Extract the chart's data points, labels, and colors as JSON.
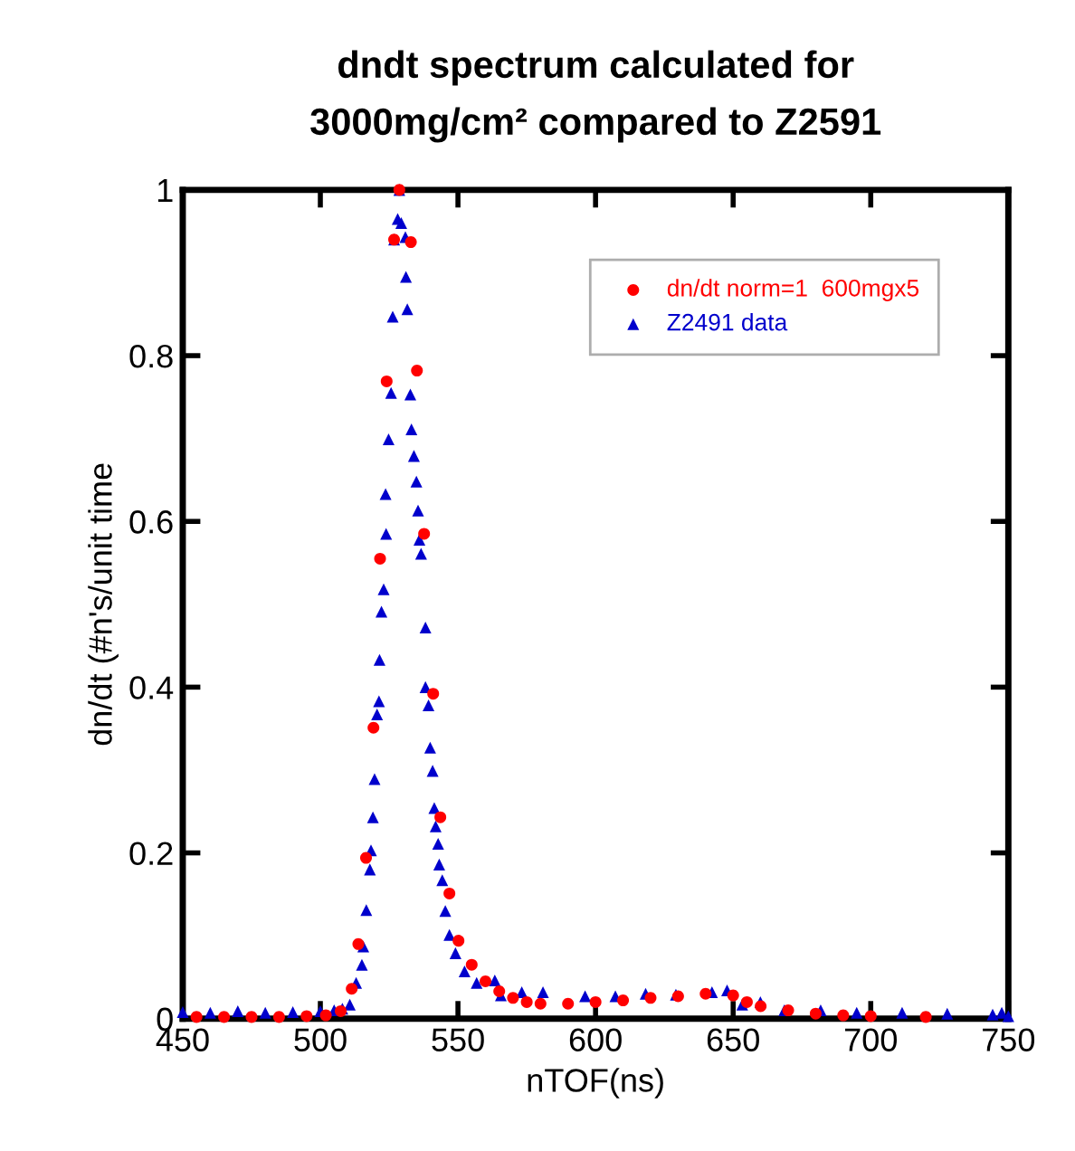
{
  "chart_data": {
    "type": "scatter",
    "title": "dndt spectrum calculated for\n3000mg/cm² compared to Z2591",
    "xlabel": "nTOF(ns)",
    "ylabel": "dn/dt (#n's/unit time",
    "xlim": [
      450,
      750
    ],
    "xticks": [
      450,
      500,
      550,
      600,
      650,
      700,
      750
    ],
    "ylim": [
      0,
      1
    ],
    "yticks": [
      0,
      {
        "value": 0.2,
        "label": "0.2"
      },
      {
        "value": 0.4,
        "label": "0.4"
      },
      {
        "value": 0.6,
        "label": "0.6"
      },
      {
        "value": 0.8,
        "label": "0.8"
      },
      1
    ],
    "grid": false,
    "legend": "top right",
    "series": [
      {
        "name": "dn/dt norm=1  600mgx5",
        "color": "#ff0000",
        "marker": "circle",
        "x": [
          455,
          465,
          475,
          485,
          495,
          502,
          507.4,
          511.4,
          513.8,
          516.6,
          519.3,
          521.7,
          524.1,
          526.8,
          528.7,
          532.9,
          535.1,
          537.7,
          541,
          543.6,
          546.9,
          550.2,
          555,
          560,
          565,
          570,
          575,
          580,
          590,
          600,
          610,
          620,
          630,
          640,
          650,
          655,
          660,
          670,
          680,
          690,
          700,
          720
        ],
        "values": [
          0.002,
          0.002,
          0.002,
          0.002,
          0.003,
          0.004,
          0.009,
          0.036,
          0.09,
          0.194,
          0.351,
          0.555,
          0.769,
          0.94,
          1.0,
          0.937,
          0.782,
          0.585,
          0.392,
          0.243,
          0.151,
          0.094,
          0.065,
          0.045,
          0.033,
          0.025,
          0.02,
          0.018,
          0.018,
          0.02,
          0.022,
          0.025,
          0.027,
          0.03,
          0.028,
          0.02,
          0.015,
          0.01,
          0.006,
          0.004,
          0.003,
          0.002
        ]
      },
      {
        "name": "Z2491 data",
        "color": "#0000cc",
        "marker": "triangle",
        "x": [
          450,
          460,
          470,
          480,
          490,
          500,
          505,
          508,
          510.7,
          513,
          515.1,
          515.6,
          516.7,
          518,
          518.4,
          519.1,
          519.7,
          520.6,
          521.3,
          521.5,
          522.2,
          523,
          523.9,
          523.7,
          524.8,
          525.7,
          526.3,
          526.8,
          528.1,
          528.7,
          529.4,
          530.9,
          531.1,
          531.6,
          532.7,
          533.1,
          534,
          534.9,
          535.5,
          536,
          536.6,
          538.2,
          538.2,
          539.3,
          539.9,
          540.8,
          541.4,
          541.9,
          542.8,
          543.2,
          544.3,
          545.4,
          546.9,
          549.1,
          552.4,
          556.8,
          563.4,
          565.6,
          573.2,
          580.9,
          596.2,
          607.2,
          618.2,
          629.2,
          642.3,
          647.8,
          653.3,
          659.9,
          668.6,
          681.8,
          694.9,
          711.4,
          727.8,
          744.3,
          747.6,
          750
        ],
        "values": [
          0.008,
          0.007,
          0.009,
          0.007,
          0.008,
          0.009,
          0.01,
          0.012,
          0.017,
          0.043,
          0.065,
          0.087,
          0.131,
          0.18,
          0.203,
          0.243,
          0.289,
          0.367,
          0.383,
          0.433,
          0.491,
          0.518,
          0.585,
          0.633,
          0.699,
          0.755,
          0.847,
          0.94,
          0.965,
          1.0,
          0.96,
          0.943,
          0.895,
          0.856,
          0.753,
          0.711,
          0.679,
          0.648,
          0.613,
          0.578,
          0.561,
          0.472,
          0.4,
          0.378,
          0.327,
          0.299,
          0.254,
          0.232,
          0.211,
          0.186,
          0.167,
          0.13,
          0.101,
          0.079,
          0.057,
          0.043,
          0.046,
          0.028,
          0.032,
          0.032,
          0.027,
          0.027,
          0.03,
          0.029,
          0.032,
          0.034,
          0.017,
          0.02,
          0.01,
          0.01,
          0.007,
          0.007,
          0.006,
          0.005,
          0.007,
          0.003
        ]
      }
    ]
  }
}
